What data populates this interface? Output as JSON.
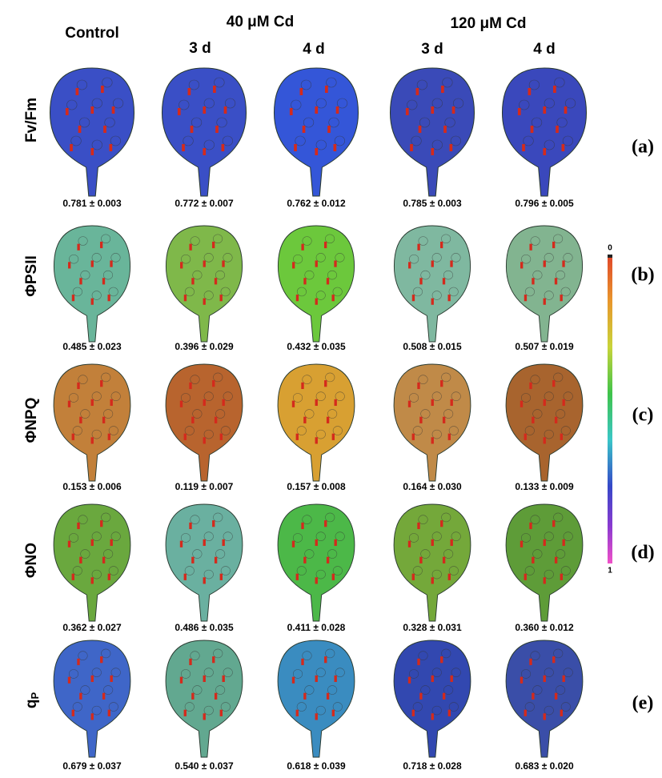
{
  "header": {
    "first_column": "Control",
    "groups": [
      {
        "title": "40 μM Cd",
        "columns": [
          "3 d",
          "4 d"
        ]
      },
      {
        "title": "120 μM Cd",
        "columns": [
          "3 d",
          "4 d"
        ]
      }
    ]
  },
  "rows": [
    {
      "label": "Fv/Fm",
      "panel": "(a)",
      "values": [
        "0.781 ± 0.003",
        "0.772 ± 0.007",
        "0.762 ± 0.012",
        "0.785 ± 0.003",
        "0.796 ± 0.005"
      ]
    },
    {
      "label": "ΦPSII",
      "panel": "(b)",
      "values": [
        "0.485 ± 0.023",
        "0.396 ± 0.029",
        "0.432 ± 0.035",
        "0.508 ± 0.015",
        "0.507 ± 0.019"
      ]
    },
    {
      "label": "ΦNPQ",
      "panel": "(c)",
      "values": [
        "0.153 ± 0.006",
        "0.119 ± 0.007",
        "0.157 ± 0.008",
        "0.164 ± 0.030",
        "0.133 ± 0.009"
      ]
    },
    {
      "label": "ΦNO",
      "panel": "(d)",
      "values": [
        "0.362 ± 0.027",
        "0.486 ± 0.035",
        "0.411 ± 0.028",
        "0.328 ± 0.031",
        "0.360 ± 0.012"
      ]
    },
    {
      "label": "q",
      "label_subscript": "P",
      "panel": "(e)",
      "values": [
        "0.679 ± 0.037",
        "0.540 ± 0.037",
        "0.618 ± 0.039",
        "0.718 ± 0.028",
        "0.683 ± 0.020"
      ]
    }
  ],
  "colorbar": {
    "top_label": "0",
    "bottom_label": "1"
  }
}
